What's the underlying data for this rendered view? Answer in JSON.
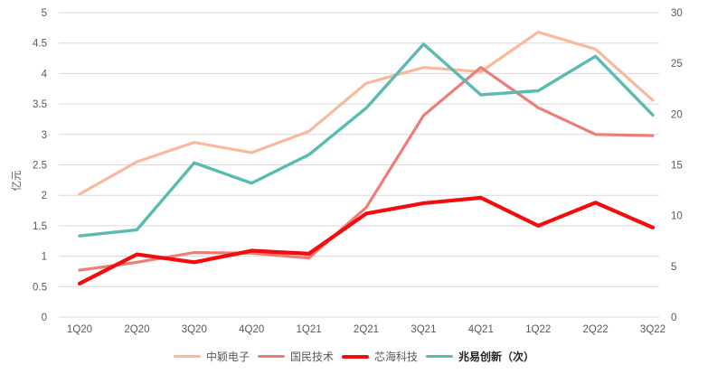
{
  "chart_data": {
    "type": "line",
    "categories": [
      "1Q20",
      "2Q20",
      "3Q20",
      "4Q20",
      "1Q21",
      "2Q21",
      "3Q21",
      "4Q21",
      "1Q22",
      "2Q22",
      "3Q22"
    ],
    "series": [
      {
        "name": "中颖电子",
        "axis": "left",
        "color": "#f8b99c",
        "width": 3.2,
        "legend_bold": false,
        "values": [
          2.02,
          2.55,
          2.87,
          2.7,
          3.05,
          3.84,
          4.1,
          4.03,
          4.68,
          4.4,
          3.56
        ]
      },
      {
        "name": "国民技术",
        "axis": "left",
        "color": "#ed7d78",
        "width": 3.2,
        "legend_bold": false,
        "values": [
          0.77,
          0.9,
          1.06,
          1.05,
          0.97,
          1.8,
          3.31,
          4.1,
          3.44,
          3.0,
          2.98
        ]
      },
      {
        "name": "芯海科技",
        "axis": "left",
        "color": "#f40b0b",
        "width": 4.2,
        "legend_bold": false,
        "values": [
          0.55,
          1.03,
          0.9,
          1.09,
          1.04,
          1.7,
          1.87,
          1.96,
          1.5,
          1.88,
          1.47
        ]
      },
      {
        "name": "兆易创新（次）",
        "axis": "right",
        "color": "#5abcb1",
        "width": 3.4,
        "legend_bold": true,
        "values": [
          8.0,
          8.6,
          15.2,
          13.2,
          16.0,
          20.6,
          26.9,
          21.9,
          22.3,
          25.7,
          19.9
        ]
      }
    ],
    "left_axis": {
      "label": "亿元",
      "min": 0,
      "max": 5,
      "step": 0.5,
      "ticks": [
        "5",
        "4.5",
        "4",
        "3.5",
        "3",
        "2.5",
        "2",
        "1.5",
        "1",
        "0.5",
        "0"
      ]
    },
    "right_axis": {
      "label": "",
      "min": 0,
      "max": 30,
      "step": 5,
      "ticks": [
        "30",
        "25",
        "20",
        "15",
        "10",
        "5",
        "0"
      ]
    },
    "grid": "horizontal",
    "legend_position": "bottom",
    "title": "",
    "xlabel": ""
  },
  "colors": {
    "gridline": "#d9d9d9",
    "tick_text": "#595959",
    "legend_text": "#595959",
    "legend_text_bold": "#262626",
    "background": "#ffffff"
  }
}
